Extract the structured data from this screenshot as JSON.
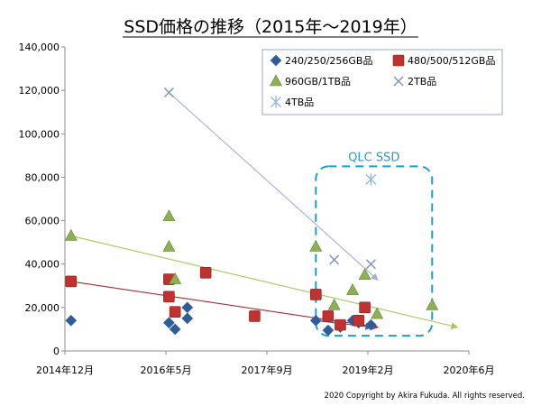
{
  "chart_data": {
    "type": "scatter",
    "title": "SSD価格の推移（2015年～2019年）",
    "xlabel": "",
    "ylabel": "",
    "x_tick_labels": [
      "2014年12月",
      "2016年5月",
      "2017年9月",
      "2019年2月",
      "2020年6月"
    ],
    "xlim": [
      "2014-12",
      "2020-06"
    ],
    "ylim": [
      0,
      140000
    ],
    "y_ticks": [
      0,
      20000,
      40000,
      60000,
      80000,
      100000,
      120000,
      140000
    ],
    "y_tick_labels": [
      "0",
      "20,000",
      "40,000",
      "60,000",
      "80,000",
      "100,000",
      "120,000",
      "140,000"
    ],
    "grid": false,
    "legend_position": "top-right",
    "series": [
      {
        "name": "240/250/256GB品",
        "marker": "diamond",
        "color": "#2e5b9a",
        "points": [
          [
            "2015-01",
            14000
          ],
          [
            "2016-05",
            13000
          ],
          [
            "2016-06",
            10000
          ],
          [
            "2016-08",
            15000
          ],
          [
            "2016-08",
            20000
          ],
          [
            "2018-05",
            14000
          ],
          [
            "2018-07",
            9500
          ],
          [
            "2018-09",
            11000
          ],
          [
            "2018-11",
            14000
          ],
          [
            "2018-12",
            13000
          ],
          [
            "2019-02",
            12000
          ]
        ],
        "trend": {
          "from": [
            "2018-05",
            14000
          ],
          "to": [
            "2019-02",
            11000
          ],
          "color": "#3a5ea8"
        }
      },
      {
        "name": "480/500/512GB品",
        "marker": "square",
        "color": "#c0322f",
        "points": [
          [
            "2015-01",
            32000
          ],
          [
            "2016-05",
            33000
          ],
          [
            "2016-05",
            25000
          ],
          [
            "2016-06",
            18000
          ],
          [
            "2016-11",
            36000
          ],
          [
            "2017-07",
            16000
          ],
          [
            "2018-05",
            26000
          ],
          [
            "2018-07",
            16000
          ],
          [
            "2018-09",
            12000
          ],
          [
            "2018-12",
            14000
          ],
          [
            "2019-01",
            20000
          ]
        ],
        "trend": {
          "from": [
            "2015-01",
            32000
          ],
          "to": [
            "2019-03",
            11000
          ],
          "color": "#a82e33"
        }
      },
      {
        "name": "960GB/1TB品",
        "marker": "triangle",
        "color": "#8cb055",
        "points": [
          [
            "2015-01",
            53000
          ],
          [
            "2016-05",
            62000
          ],
          [
            "2016-05",
            48000
          ],
          [
            "2016-06",
            33000
          ],
          [
            "2018-05",
            48000
          ],
          [
            "2018-08",
            21000
          ],
          [
            "2018-11",
            28000
          ],
          [
            "2019-01",
            35000
          ],
          [
            "2019-03",
            17000
          ],
          [
            "2019-12",
            21000
          ]
        ],
        "trend": {
          "from": [
            "2015-01",
            53000
          ],
          "to": [
            "2020-04",
            11000
          ],
          "color": "#a5c85c"
        }
      },
      {
        "name": "2TB品",
        "marker": "x",
        "color": "#7f90b8",
        "points": [
          [
            "2016-05",
            119000
          ],
          [
            "2018-08",
            42000
          ],
          [
            "2019-02",
            40000
          ]
        ],
        "trend": {
          "from": [
            "2016-05",
            119000
          ],
          "to": [
            "2019-03",
            33000
          ],
          "color": "#a9aed6"
        }
      },
      {
        "name": "4TB品",
        "marker": "star",
        "color": "#97b8da",
        "points": [
          [
            "2019-02",
            79000
          ]
        ]
      }
    ],
    "annotations": [
      {
        "text": "QLC SSD",
        "style": "dashed rounded box",
        "color": "#1f9ec8",
        "x_range": [
          "2018-05",
          "2019-12"
        ],
        "y_range": [
          7000,
          85000
        ]
      }
    ],
    "copyright": "2020 Copyright by Akira Fukuda. All rights reserved."
  }
}
